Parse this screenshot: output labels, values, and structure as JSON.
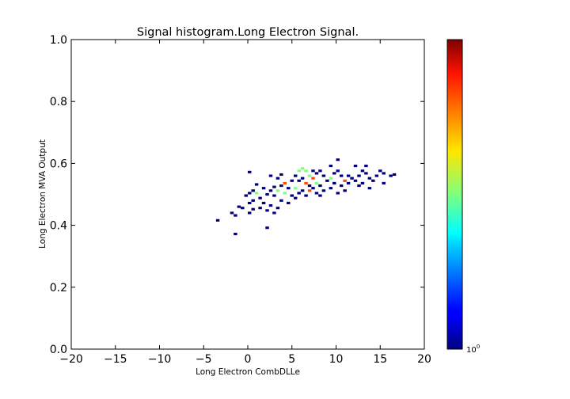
{
  "chart_data": {
    "type": "heatmap",
    "title": "Signal histogram.Long Electron Signal.",
    "xlabel": "Long Electron CombDLLe",
    "ylabel": "Long Electron MVA Output",
    "xlim": [
      -20,
      20
    ],
    "ylim": [
      0.0,
      1.0
    ],
    "x_ticks": [
      -20,
      -15,
      -10,
      -5,
      0,
      5,
      10,
      15,
      20
    ],
    "x_tick_labels": [
      "−20",
      "−15",
      "−10",
      "−5",
      "0",
      "5",
      "10",
      "15",
      "20"
    ],
    "y_ticks": [
      0.0,
      0.2,
      0.4,
      0.6,
      0.8,
      1.0
    ],
    "y_tick_labels": [
      "0.0",
      "0.2",
      "0.4",
      "0.6",
      "0.8",
      "1.0"
    ],
    "grid": false,
    "bin_width_x": 0.4,
    "bin_width_y": 0.008,
    "colormap": "jet",
    "colorbar": {
      "scale": "log",
      "tick_labels": [
        {
          "base": "10",
          "exp": "0"
        }
      ]
    },
    "cells": [
      [
        -3.6,
        0.412,
        1
      ],
      [
        -1.6,
        0.368,
        1
      ],
      [
        -0.8,
        0.452,
        1
      ],
      [
        -1.2,
        0.456,
        1
      ],
      [
        -2.0,
        0.436,
        1
      ],
      [
        -1.6,
        0.428,
        1
      ],
      [
        0.0,
        0.436,
        1
      ],
      [
        0.4,
        0.448,
        1
      ],
      [
        0.0,
        0.468,
        1
      ],
      [
        0.4,
        0.476,
        1
      ],
      [
        -0.4,
        0.492,
        1
      ],
      [
        0.0,
        0.5,
        1
      ],
      [
        0.4,
        0.508,
        1
      ],
      [
        0.8,
        0.5,
        2
      ],
      [
        1.2,
        0.484,
        1
      ],
      [
        1.6,
        0.468,
        1
      ],
      [
        1.2,
        0.452,
        1
      ],
      [
        2.0,
        0.444,
        1
      ],
      [
        2.4,
        0.46,
        1
      ],
      [
        2.0,
        0.496,
        1
      ],
      [
        1.6,
        0.516,
        1
      ],
      [
        0.0,
        0.568,
        1
      ],
      [
        0.8,
        0.528,
        1
      ],
      [
        2.0,
        0.388,
        1
      ],
      [
        2.8,
        0.436,
        1
      ],
      [
        3.2,
        0.452,
        1
      ],
      [
        3.6,
        0.476,
        1
      ],
      [
        2.8,
        0.492,
        1
      ],
      [
        3.2,
        0.508,
        2
      ],
      [
        2.8,
        0.52,
        1
      ],
      [
        3.2,
        0.548,
        1
      ],
      [
        3.6,
        0.56,
        1
      ],
      [
        2.4,
        0.556,
        1
      ],
      [
        4.0,
        0.532,
        3
      ],
      [
        4.4,
        0.516,
        1
      ],
      [
        4.0,
        0.5,
        2
      ],
      [
        4.8,
        0.492,
        1
      ],
      [
        4.4,
        0.468,
        1
      ],
      [
        5.2,
        0.484,
        1
      ],
      [
        5.2,
        0.516,
        2
      ],
      [
        4.8,
        0.54,
        1
      ],
      [
        5.2,
        0.556,
        1
      ],
      [
        5.6,
        0.572,
        2
      ],
      [
        6.0,
        0.58,
        2
      ],
      [
        6.4,
        0.572,
        2
      ],
      [
        6.0,
        0.548,
        1
      ],
      [
        6.4,
        0.532,
        3
      ],
      [
        6.8,
        0.524,
        1
      ],
      [
        6.0,
        0.508,
        1
      ],
      [
        5.6,
        0.5,
        1
      ],
      [
        6.4,
        0.492,
        1
      ],
      [
        6.8,
        0.508,
        3
      ],
      [
        7.2,
        0.516,
        1
      ],
      [
        7.6,
        0.532,
        2
      ],
      [
        7.2,
        0.548,
        3
      ],
      [
        7.6,
        0.564,
        1
      ],
      [
        8.0,
        0.572,
        1
      ],
      [
        7.2,
        0.572,
        1
      ],
      [
        8.4,
        0.556,
        1
      ],
      [
        8.8,
        0.54,
        1
      ],
      [
        8.0,
        0.524,
        1
      ],
      [
        8.4,
        0.508,
        1
      ],
      [
        8.0,
        0.492,
        1
      ],
      [
        7.6,
        0.5,
        1
      ],
      [
        9.2,
        0.516,
        1
      ],
      [
        9.6,
        0.532,
        1
      ],
      [
        9.2,
        0.548,
        2
      ],
      [
        9.6,
        0.564,
        1
      ],
      [
        10.0,
        0.572,
        1
      ],
      [
        10.4,
        0.556,
        1
      ],
      [
        10.8,
        0.54,
        3
      ],
      [
        10.4,
        0.524,
        1
      ],
      [
        10.8,
        0.508,
        1
      ],
      [
        10.0,
        0.5,
        1
      ],
      [
        11.2,
        0.532,
        1
      ],
      [
        11.6,
        0.548,
        1
      ],
      [
        11.2,
        0.556,
        1
      ],
      [
        12.0,
        0.54,
        1
      ],
      [
        12.4,
        0.524,
        1
      ],
      [
        12.8,
        0.532,
        1
      ],
      [
        12.4,
        0.556,
        1
      ],
      [
        12.8,
        0.572,
        1
      ],
      [
        13.2,
        0.564,
        1
      ],
      [
        13.6,
        0.548,
        1
      ],
      [
        14.0,
        0.54,
        1
      ],
      [
        14.4,
        0.556,
        1
      ],
      [
        14.8,
        0.572,
        1
      ],
      [
        15.2,
        0.564,
        1
      ],
      [
        16.0,
        0.556,
        1
      ],
      [
        16.4,
        0.56,
        1
      ],
      [
        10.0,
        0.608,
        1
      ],
      [
        9.2,
        0.588,
        1
      ],
      [
        12.0,
        0.588,
        1
      ],
      [
        13.2,
        0.588,
        1
      ],
      [
        15.2,
        0.532,
        1
      ],
      [
        13.6,
        0.516,
        1
      ],
      [
        6.8,
        0.556,
        2
      ],
      [
        5.6,
        0.54,
        1
      ],
      [
        3.6,
        0.524,
        1
      ],
      [
        2.4,
        0.508,
        1
      ]
    ]
  }
}
